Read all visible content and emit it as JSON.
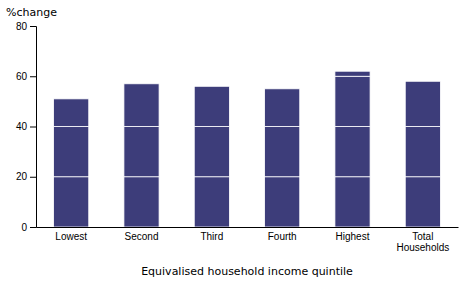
{
  "chart_data": {
    "type": "bar",
    "stacked": true,
    "categories": [
      "Lowest",
      "Second",
      "Third",
      "Fourth",
      "Highest",
      "Total\nHouseholds"
    ],
    "series": [
      {
        "color": "#3D3D7A",
        "values": [
          20,
          20,
          20,
          20,
          20,
          20
        ]
      },
      {
        "color": "#3D3D7A",
        "values": [
          20,
          20,
          20,
          20,
          20,
          20
        ]
      },
      {
        "color": "#3D3D7A",
        "values": [
          11,
          17,
          16,
          15,
          20,
          18
        ]
      },
      {
        "color": "#3D3D7A",
        "values": [
          0,
          0,
          0,
          0,
          2,
          0
        ]
      }
    ],
    "ylabel": "%change",
    "xlabel": "Equivalised household income quintile",
    "ylim": [
      0,
      80
    ],
    "yticks": [
      0,
      20,
      40,
      60,
      80
    ],
    "grid": false
  }
}
